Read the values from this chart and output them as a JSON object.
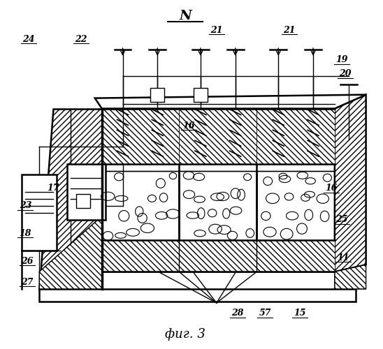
{
  "title": "N",
  "caption": "фиг. 3",
  "bg_color": "#ffffff",
  "figsize": [
    5.48,
    5.0
  ],
  "dpi": 100
}
